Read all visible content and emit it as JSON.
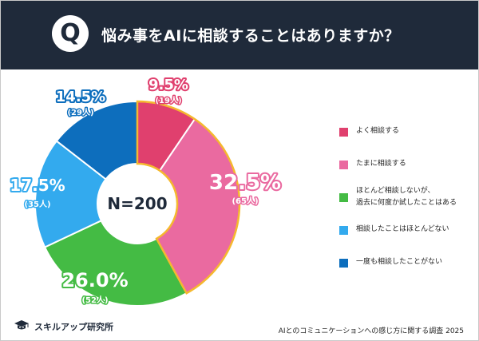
{
  "header": {
    "badge": "Q",
    "title": "悩み事をAIに相談することはありますか？"
  },
  "colors": {
    "header_bg": "#1f2a3a",
    "slice_1": "#e0406e",
    "slice_2": "#ea6aa0",
    "slice_3": "#44bb44",
    "slice_4": "#33aaee",
    "slice_5": "#0d6ebd",
    "highlight_border": "#f5b82e"
  },
  "chart_data": {
    "type": "pie",
    "center_label": "N=200",
    "slices": [
      {
        "label": "よく相談する",
        "percent": 9.5,
        "percent_text": "9.5%",
        "count_text": "(19人)",
        "color": "#e0406e",
        "highlighted": true
      },
      {
        "label": "たまに相談する",
        "percent": 32.5,
        "percent_text": "32.5%",
        "count_text": "(65人)",
        "color": "#ea6aa0",
        "highlighted": true
      },
      {
        "label": "ほとんど相談しないが、\n過去に何度か試したことはある",
        "percent": 26.0,
        "percent_text": "26.0%",
        "count_text": "(52人)",
        "color": "#44bb44",
        "highlighted": false
      },
      {
        "label": "相談したことはほとんどない",
        "percent": 17.5,
        "percent_text": "17.5%",
        "count_text": "(35人)",
        "color": "#33aaee",
        "highlighted": false
      },
      {
        "label": "一度も相談したことがない",
        "percent": 14.5,
        "percent_text": "14.5%",
        "count_text": "(29人)",
        "color": "#0d6ebd",
        "highlighted": false
      }
    ]
  },
  "footer": {
    "logo_text": "スキルアップ研究所",
    "source": "AIとのコミュニケーションへの感じ方に関する調査 2025"
  }
}
